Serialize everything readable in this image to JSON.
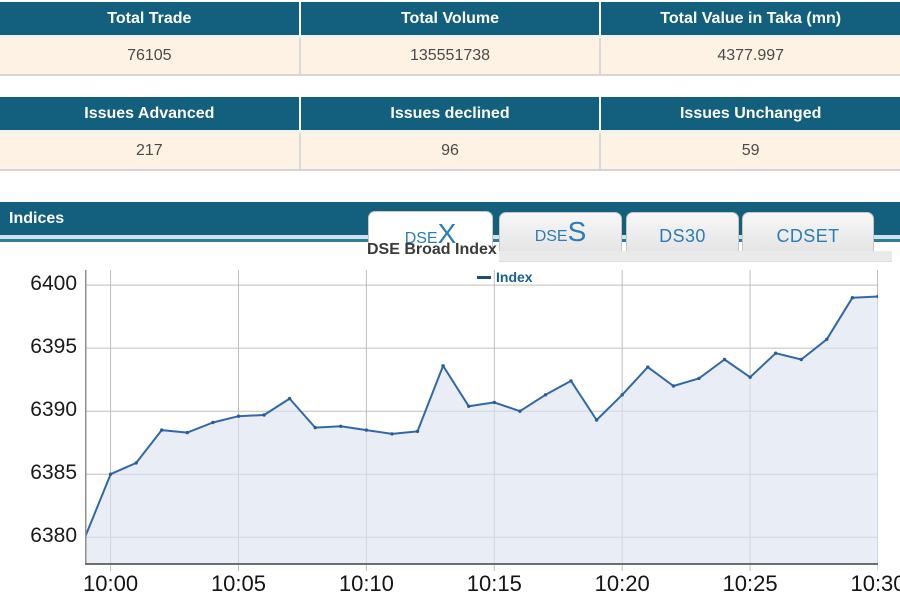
{
  "colors": {
    "teal": "#135f7e",
    "band_light": "#cfe2e9",
    "band_dark": "#2e7e9b",
    "cream": "#fdf2e4",
    "header_text": "#ffffff",
    "value_text": "#4a4a4a",
    "tab_text": "#2b7cb8",
    "line": "#3268a8",
    "area_fill": "#dbe4f1",
    "legend_text": "#1b5e97",
    "grid": "#bfbfbf",
    "axis": "#6e6e6e",
    "tick_text": "#1a1a1a"
  },
  "table_trade": {
    "headers": [
      "Total Trade",
      "Total Volume",
      "Total Value in Taka (mn)"
    ],
    "values": [
      "76105",
      "135551738",
      "4377.997"
    ]
  },
  "table_issues": {
    "headers": [
      "Issues Advanced",
      "Issues declined",
      "Issues Unchanged"
    ],
    "values": [
      "217",
      "96",
      "59"
    ]
  },
  "indices_bar": {
    "title": "Indices"
  },
  "tabs": [
    {
      "label": "DSEX",
      "prefix": "DSE",
      "suffix": "X",
      "active": true
    },
    {
      "label": "DSES",
      "prefix": "DSE",
      "suffix": "S",
      "active": false
    },
    {
      "label": "DS30",
      "prefix": "DS30",
      "suffix": "",
      "active": false
    },
    {
      "label": "CDSET",
      "prefix": "CDSET",
      "suffix": "",
      "active": false
    }
  ],
  "chart_data": {
    "type": "area",
    "title": "DSE Broad Index",
    "series": [
      {
        "name": "Index",
        "values": [
          6380.0,
          6385.0,
          6385.9,
          6388.5,
          6388.3,
          6389.1,
          6389.6,
          6389.7,
          6391.0,
          6388.7,
          6388.8,
          6388.5,
          6388.2,
          6388.4,
          6393.6,
          6390.4,
          6390.7,
          6390.0,
          6391.3,
          6392.4,
          6389.3,
          6391.3,
          6393.5,
          6392.0,
          6392.6,
          6394.1,
          6392.7,
          6394.6,
          6394.1,
          6395.7,
          6399.0,
          6399.1
        ]
      }
    ],
    "x": [
      "9:59",
      "10:00",
      "10:01",
      "10:02",
      "10:03",
      "10:04",
      "10:05",
      "10:06",
      "10:07",
      "10:08",
      "10:09",
      "10:10",
      "10:11",
      "10:12",
      "10:13",
      "10:14",
      "10:15",
      "10:16",
      "10:17",
      "10:18",
      "10:19",
      "10:20",
      "10:21",
      "10:22",
      "10:23",
      "10:24",
      "10:25",
      "10:26",
      "10:27",
      "10:28",
      "10:29",
      "10:30"
    ],
    "xticks": [
      "10:00",
      "10:05",
      "10:10",
      "10:15",
      "10:20",
      "10:25",
      "10:30"
    ],
    "yticks": [
      6400,
      6395,
      6390,
      6385,
      6380
    ],
    "ylim": [
      6377.8,
      6401.2
    ],
    "grid": true,
    "legend_position": "top-center"
  }
}
